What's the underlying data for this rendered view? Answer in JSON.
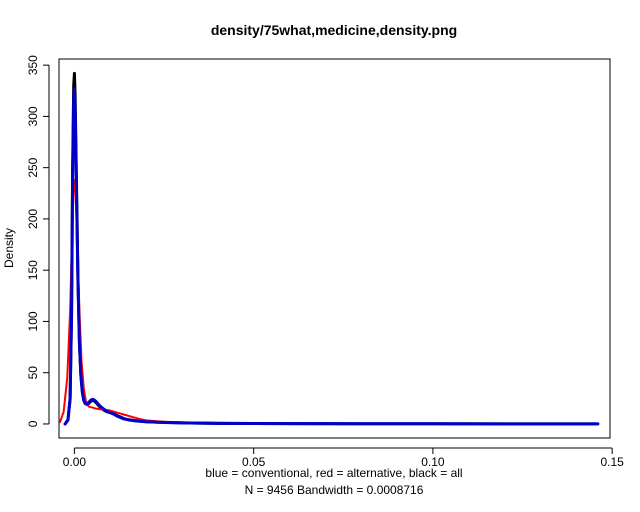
{
  "chart_data": {
    "type": "line",
    "title": "density/75what,medicine,density.png",
    "xlabel": "blue = conventional, red = alternative, black = all",
    "sublabel": "N = 9456   Bandwidth = 0.0008716",
    "ylabel": "Density",
    "xlim": [
      -0.0043,
      0.1494
    ],
    "ylim": [
      -13.7,
      356.0
    ],
    "x_ticks": [
      0.0,
      0.05,
      0.1,
      0.15
    ],
    "x_tick_labels": [
      "0.00",
      "0.05",
      "0.10",
      "0.15"
    ],
    "y_ticks": [
      0,
      50,
      100,
      150,
      200,
      250,
      300,
      350
    ],
    "y_tick_labels": [
      "0",
      "50",
      "100",
      "150",
      "200",
      "250",
      "300",
      "350"
    ],
    "grid": false,
    "series": [
      {
        "name": "all",
        "color": "#000000",
        "width": 3,
        "points": [
          [
            -0.0026,
            0
          ],
          [
            -0.0018,
            4
          ],
          [
            -0.0012,
            25
          ],
          [
            -0.0008,
            110
          ],
          [
            -0.0005,
            250
          ],
          [
            -0.0002,
            330
          ],
          [
            0.0,
            342
          ],
          [
            0.0002,
            320
          ],
          [
            0.0006,
            230
          ],
          [
            0.001,
            140
          ],
          [
            0.0014,
            80
          ],
          [
            0.0018,
            48
          ],
          [
            0.0022,
            32
          ],
          [
            0.0026,
            24
          ],
          [
            0.003,
            20
          ],
          [
            0.0035,
            19
          ],
          [
            0.004,
            20
          ],
          [
            0.0045,
            22
          ],
          [
            0.005,
            23
          ],
          [
            0.0055,
            22.5
          ],
          [
            0.006,
            21
          ],
          [
            0.0065,
            19
          ],
          [
            0.007,
            17
          ],
          [
            0.008,
            14
          ],
          [
            0.009,
            12
          ],
          [
            0.01,
            11
          ],
          [
            0.011,
            10
          ],
          [
            0.012,
            8
          ],
          [
            0.013,
            6.5
          ],
          [
            0.014,
            5
          ],
          [
            0.015,
            4.2
          ],
          [
            0.017,
            3.2
          ],
          [
            0.02,
            2.2
          ],
          [
            0.025,
            1.5
          ],
          [
            0.03,
            1.0
          ],
          [
            0.04,
            0.6
          ],
          [
            0.05,
            0.4
          ],
          [
            0.06,
            0.3
          ],
          [
            0.08,
            0.2
          ],
          [
            0.1,
            0.15
          ],
          [
            0.12,
            0.1
          ],
          [
            0.14,
            0.1
          ],
          [
            0.146,
            0.05
          ]
        ]
      },
      {
        "name": "alternative",
        "color": "#ff0000",
        "width": 2,
        "points": [
          [
            -0.004,
            2
          ],
          [
            -0.003,
            12
          ],
          [
            -0.002,
            45
          ],
          [
            -0.0012,
            110
          ],
          [
            -0.0006,
            190
          ],
          [
            -0.0002,
            232
          ],
          [
            0.0,
            238
          ],
          [
            0.0003,
            228
          ],
          [
            0.0008,
            180
          ],
          [
            0.0014,
            110
          ],
          [
            0.002,
            60
          ],
          [
            0.0026,
            35
          ],
          [
            0.0032,
            22
          ],
          [
            0.004,
            17
          ],
          [
            0.005,
            16
          ],
          [
            0.006,
            15
          ],
          [
            0.008,
            14
          ],
          [
            0.01,
            13
          ],
          [
            0.012,
            11
          ],
          [
            0.014,
            9
          ],
          [
            0.016,
            7
          ],
          [
            0.018,
            5
          ],
          [
            0.02,
            3.5
          ],
          [
            0.025,
            2.2
          ],
          [
            0.03,
            1.5
          ],
          [
            0.04,
            1.0
          ],
          [
            0.05,
            0.7
          ],
          [
            0.055,
            0.5
          ]
        ]
      },
      {
        "name": "conventional",
        "color": "#0000cd",
        "width": 3,
        "points": [
          [
            -0.0026,
            0
          ],
          [
            -0.0018,
            4
          ],
          [
            -0.0012,
            24
          ],
          [
            -0.0008,
            105
          ],
          [
            -0.0005,
            240
          ],
          [
            -0.0002,
            315
          ],
          [
            0.0,
            327
          ],
          [
            0.0002,
            308
          ],
          [
            0.0006,
            222
          ],
          [
            0.001,
            136
          ],
          [
            0.0014,
            78
          ],
          [
            0.0018,
            47
          ],
          [
            0.0022,
            31
          ],
          [
            0.0026,
            23
          ],
          [
            0.003,
            20
          ],
          [
            0.0035,
            19.5
          ],
          [
            0.004,
            21
          ],
          [
            0.0045,
            23
          ],
          [
            0.005,
            24
          ],
          [
            0.0055,
            23.5
          ],
          [
            0.006,
            22
          ],
          [
            0.0065,
            20
          ],
          [
            0.007,
            18
          ],
          [
            0.008,
            15
          ],
          [
            0.009,
            12.5
          ],
          [
            0.01,
            11
          ],
          [
            0.011,
            9.5
          ],
          [
            0.012,
            7.5
          ],
          [
            0.013,
            6
          ],
          [
            0.014,
            4.8
          ],
          [
            0.015,
            4
          ],
          [
            0.017,
            3
          ],
          [
            0.02,
            2.1
          ],
          [
            0.025,
            1.4
          ],
          [
            0.03,
            1.0
          ],
          [
            0.04,
            0.6
          ],
          [
            0.05,
            0.4
          ],
          [
            0.06,
            0.3
          ],
          [
            0.08,
            0.2
          ],
          [
            0.1,
            0.15
          ],
          [
            0.12,
            0.1
          ],
          [
            0.14,
            0.1
          ],
          [
            0.146,
            0.05
          ]
        ]
      }
    ]
  }
}
